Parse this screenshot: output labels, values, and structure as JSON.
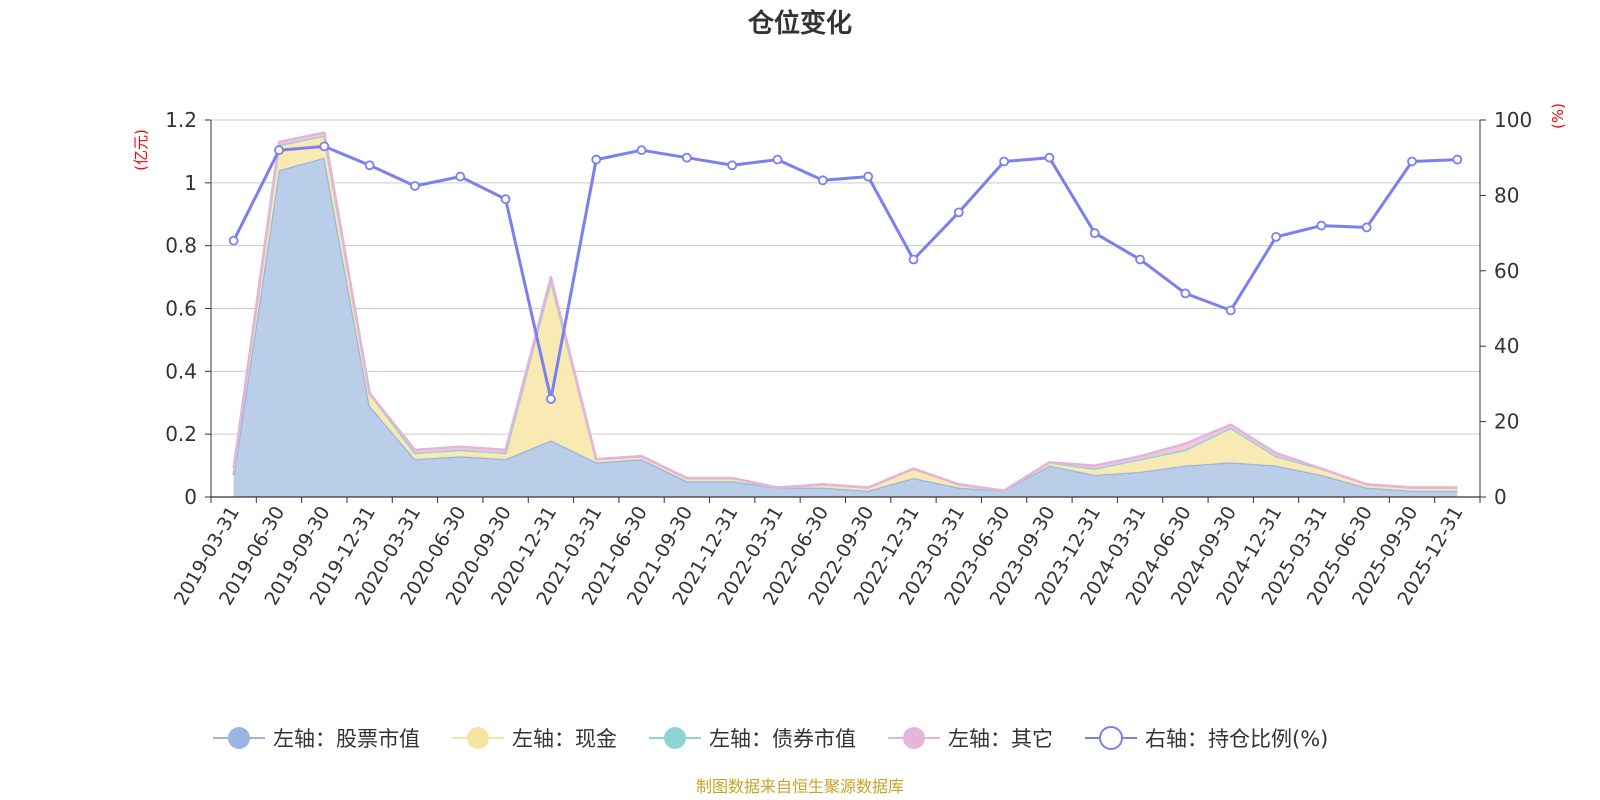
{
  "chart_data": {
    "type": "area",
    "title": "仓位变化",
    "y_left_unit": "(亿元)",
    "y_right_unit": "(%)",
    "y_left_range": [
      0,
      1.2
    ],
    "y_right_range": [
      0,
      100
    ],
    "y_left_ticks": [
      "0",
      "0.2",
      "0.4",
      "0.6",
      "0.8",
      "1",
      "1.2"
    ],
    "y_right_ticks": [
      "0",
      "20",
      "40",
      "60",
      "80",
      "100"
    ],
    "x": [
      "2019-03-31",
      "2019-06-30",
      "2019-09-30",
      "2019-12-31",
      "2020-03-31",
      "2020-06-30",
      "2020-09-30",
      "2020-12-31",
      "2021-03-31",
      "2021-06-30",
      "2021-09-30",
      "2021-12-31",
      "2022-03-31",
      "2022-06-30",
      "2022-09-30",
      "2022-12-31",
      "2023-03-31",
      "2023-06-30",
      "2023-09-30",
      "2023-12-31",
      "2024-03-31",
      "2024-06-30",
      "2024-09-30",
      "2024-12-31",
      "2025-03-31",
      "2025-06-30",
      "2025-09-30",
      "2025-12-31"
    ],
    "series": [
      {
        "name": "左轴：股票市值",
        "axis": "left",
        "stacked": true,
        "color": "#9ab5e0",
        "fill": "#b6cbe9",
        "values": [
          0.07,
          1.04,
          1.08,
          0.29,
          0.12,
          0.13,
          0.12,
          0.18,
          0.11,
          0.12,
          0.05,
          0.05,
          0.03,
          0.03,
          0.02,
          0.06,
          0.03,
          0.02,
          0.1,
          0.07,
          0.08,
          0.1,
          0.11,
          0.1,
          0.07,
          0.03,
          0.02,
          0.02
        ]
      },
      {
        "name": "左轴：现金",
        "axis": "left",
        "stacked": true,
        "color": "#f7e3a0",
        "fill": "#f9e9b0",
        "values": [
          0.02,
          0.08,
          0.07,
          0.04,
          0.02,
          0.02,
          0.02,
          0.51,
          0.01,
          0.01,
          0.01,
          0.01,
          0.0,
          0.01,
          0.01,
          0.03,
          0.01,
          0.0,
          0.01,
          0.02,
          0.04,
          0.05,
          0.11,
          0.03,
          0.02,
          0.01,
          0.01,
          0.01
        ]
      },
      {
        "name": "左轴：债券市值",
        "axis": "left",
        "stacked": true,
        "color": "#8fd3d3",
        "fill": "#a8dede",
        "values": [
          0,
          0,
          0,
          0,
          0,
          0,
          0,
          0,
          0,
          0,
          0,
          0,
          0,
          0,
          0,
          0,
          0,
          0,
          0,
          0,
          0,
          0,
          0,
          0,
          0,
          0,
          0,
          0
        ]
      },
      {
        "name": "左轴：其它",
        "axis": "left",
        "stacked": true,
        "color": "#e6b4d8",
        "fill": "#ecc6e1",
        "values": [
          0.0,
          0.01,
          0.01,
          0.0,
          0.01,
          0.01,
          0.01,
          0.01,
          0.0,
          0.0,
          0.0,
          0.0,
          0.0,
          0.0,
          0.0,
          0.0,
          0.0,
          0.0,
          0.0,
          0.01,
          0.01,
          0.02,
          0.01,
          0.01,
          0.0,
          0.0,
          0.0,
          0.0
        ]
      },
      {
        "name": "右轴：持仓比例(%)",
        "axis": "right",
        "stacked": false,
        "color": "#7b7ff0",
        "values": [
          68,
          92,
          93,
          88,
          82.5,
          85,
          79,
          26,
          89.5,
          92,
          90,
          88,
          89.5,
          84,
          85,
          63,
          75.5,
          89,
          90,
          70,
          63,
          54,
          49.5,
          69,
          72,
          71.5,
          89,
          89.5
        ]
      }
    ],
    "legend_position": "bottom",
    "grid": true
  },
  "footer": {
    "source": "制图数据来自恒生聚源数据库"
  }
}
